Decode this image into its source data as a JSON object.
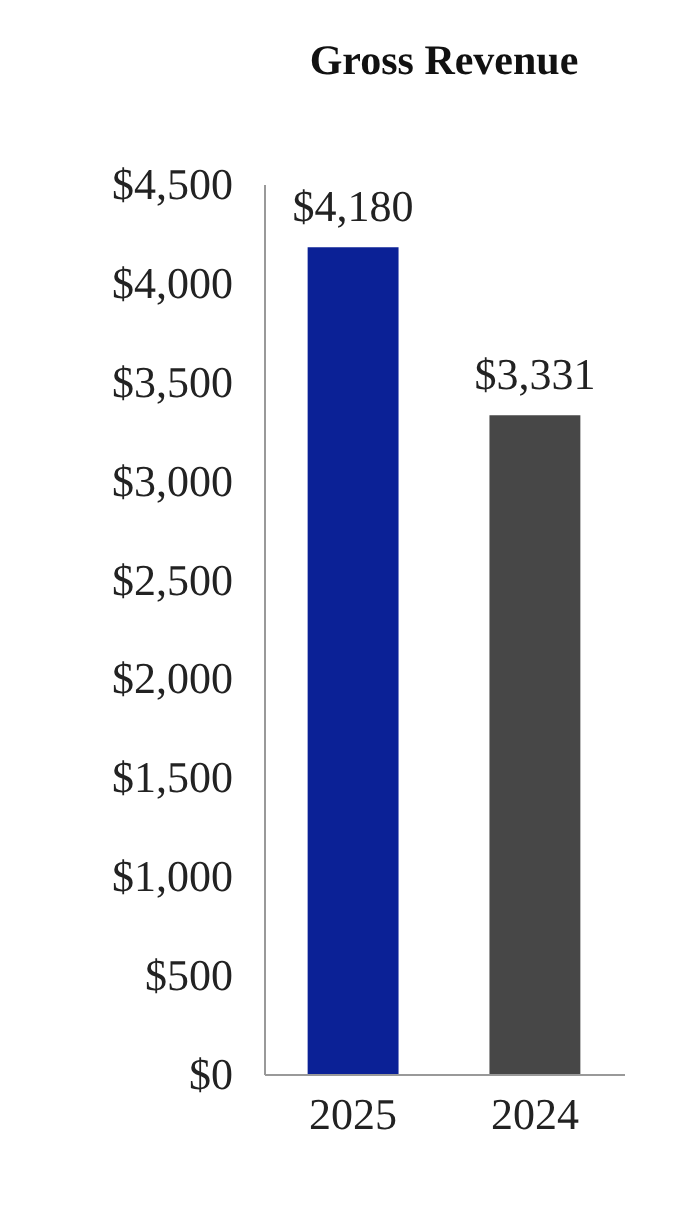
{
  "chart_data": {
    "type": "bar",
    "title": "Gross Revenue",
    "categories": [
      "2025",
      "2024"
    ],
    "values": [
      4180,
      3331
    ],
    "colors": [
      "#0b2196",
      "#474747"
    ],
    "value_labels": [
      "$4,180",
      "$3,331"
    ],
    "ylim": [
      0,
      4500
    ],
    "yticks": [
      {
        "value": 0,
        "label": "$0"
      },
      {
        "value": 500,
        "label": "$500"
      },
      {
        "value": 1000,
        "label": "$1,000"
      },
      {
        "value": 1500,
        "label": "$1,500"
      },
      {
        "value": 2000,
        "label": "$2,000"
      },
      {
        "value": 2500,
        "label": "$2,500"
      },
      {
        "value": 3000,
        "label": "$3,000"
      },
      {
        "value": 3500,
        "label": "$3,500"
      },
      {
        "value": 4000,
        "label": "$4,000"
      },
      {
        "value": 4500,
        "label": "$4,500"
      }
    ],
    "grid": false
  }
}
